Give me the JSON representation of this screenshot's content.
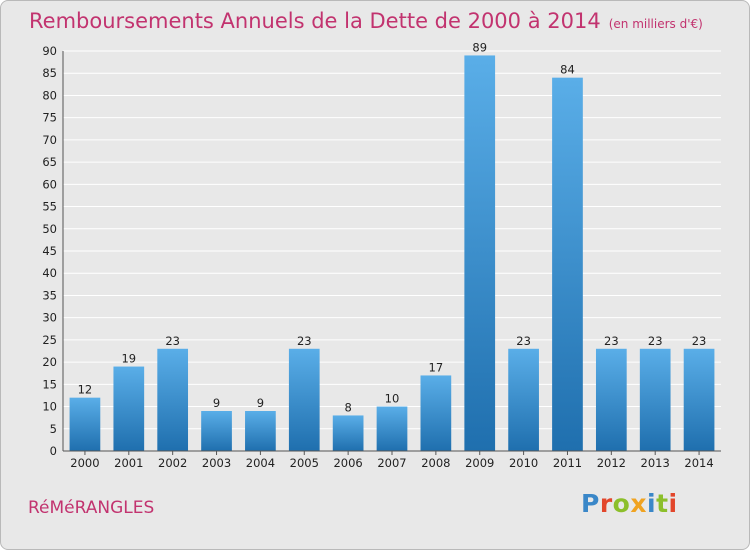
{
  "title": "Remboursements Annuels de la Dette de 2000 à 2014",
  "unit": "(en milliers d'€)",
  "commune": "RéMéRANGLES",
  "logo": {
    "letters": [
      "P",
      "r",
      "o",
      "x",
      "i",
      "t",
      "i"
    ]
  },
  "colors": {
    "title": "#c2336f",
    "bar_top": "#5aaee8",
    "bar_bottom": "#1f6fae",
    "plot_bg": "#e8e8e8",
    "grid": "#ffffff"
  },
  "chart_data": {
    "type": "bar",
    "categories": [
      "2000",
      "2001",
      "2002",
      "2003",
      "2004",
      "2005",
      "2006",
      "2007",
      "2008",
      "2009",
      "2010",
      "2011",
      "2012",
      "2013",
      "2014"
    ],
    "values": [
      12,
      19,
      23,
      9,
      9,
      23,
      8,
      10,
      17,
      89,
      23,
      84,
      23,
      23,
      23
    ],
    "ylim": [
      0,
      90
    ],
    "yticks": [
      0,
      5,
      10,
      15,
      20,
      25,
      30,
      35,
      40,
      45,
      50,
      55,
      60,
      65,
      70,
      75,
      80,
      85,
      90
    ],
    "grid": true
  }
}
